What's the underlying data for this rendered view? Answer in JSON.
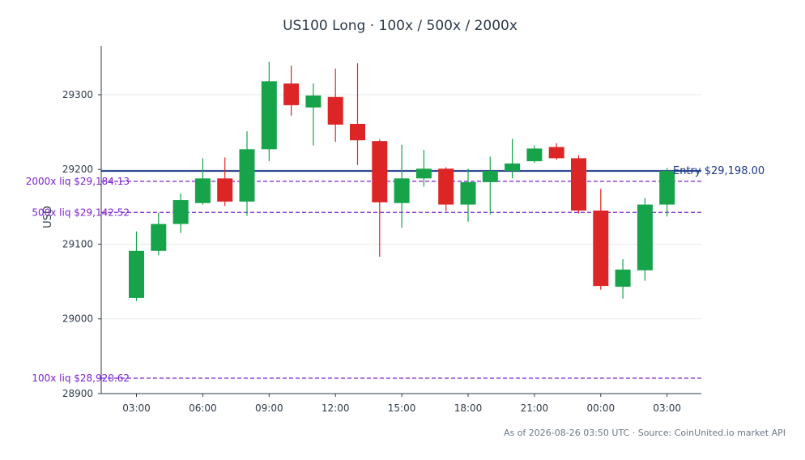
{
  "chart_data": {
    "type": "candlestick",
    "title": "US100 Long · 100x / 500x / 2000x",
    "ylabel": "USD",
    "xlabel": "",
    "ylim": [
      28900,
      29365
    ],
    "yticks": [
      28900,
      29000,
      29100,
      29200,
      29300
    ],
    "ytick_labels": [
      "28900",
      "29000",
      "29100",
      "29200",
      "29300"
    ],
    "xtick_labels": [
      "03:00",
      "06:00",
      "09:00",
      "12:00",
      "15:00",
      "18:00",
      "21:00",
      "00:00",
      "03:00"
    ],
    "xtick_candle_index": [
      0,
      3,
      6,
      9,
      12,
      15,
      18,
      21,
      24
    ],
    "grid": "horizontal",
    "colors": {
      "up": "#16a34a",
      "down": "#dc2626",
      "entry": "#1e3a8a",
      "liq": "#7e22ce",
      "text": "#2d3a4a",
      "footer": "#6b7785"
    },
    "candles": [
      {
        "time": "03:00",
        "open": 29028,
        "high": 29117,
        "low": 29024,
        "close": 29091
      },
      {
        "time": "04:00",
        "open": 29091,
        "high": 29142,
        "low": 29085,
        "close": 29127
      },
      {
        "time": "05:00",
        "open": 29127,
        "high": 29168,
        "low": 29115,
        "close": 29159
      },
      {
        "time": "06:00",
        "open": 29155,
        "high": 29215,
        "low": 29153,
        "close": 29188
      },
      {
        "time": "07:00",
        "open": 29188,
        "high": 29216,
        "low": 29151,
        "close": 29157
      },
      {
        "time": "08:00",
        "open": 29157,
        "high": 29251,
        "low": 29138,
        "close": 29227
      },
      {
        "time": "09:00",
        "open": 29227,
        "high": 29344,
        "low": 29211,
        "close": 29318
      },
      {
        "time": "10:00",
        "open": 29315,
        "high": 29339,
        "low": 29272,
        "close": 29286
      },
      {
        "time": "11:00",
        "open": 29283,
        "high": 29315,
        "low": 29232,
        "close": 29299
      },
      {
        "time": "12:00",
        "open": 29297,
        "high": 29335,
        "low": 29237,
        "close": 29260
      },
      {
        "time": "13:00",
        "open": 29261,
        "high": 29342,
        "low": 29206,
        "close": 29239
      },
      {
        "time": "14:00",
        "open": 29238,
        "high": 29240,
        "low": 29083,
        "close": 29156
      },
      {
        "time": "15:00",
        "open": 29155,
        "high": 29233,
        "low": 29122,
        "close": 29188
      },
      {
        "time": "16:00",
        "open": 29188,
        "high": 29226,
        "low": 29177,
        "close": 29201
      },
      {
        "time": "17:00",
        "open": 29201,
        "high": 29203,
        "low": 29144,
        "close": 29153
      },
      {
        "time": "18:00",
        "open": 29153,
        "high": 29201,
        "low": 29130,
        "close": 29183
      },
      {
        "time": "19:00",
        "open": 29183,
        "high": 29217,
        "low": 29140,
        "close": 29198
      },
      {
        "time": "20:00",
        "open": 29198,
        "high": 29241,
        "low": 29188,
        "close": 29208
      },
      {
        "time": "21:00",
        "open": 29211,
        "high": 29232,
        "low": 29209,
        "close": 29228
      },
      {
        "time": "22:00",
        "open": 29230,
        "high": 29235,
        "low": 29213,
        "close": 29215
      },
      {
        "time": "23:00",
        "open": 29215,
        "high": 29219,
        "low": 29141,
        "close": 29145
      },
      {
        "time": "00:00",
        "open": 29145,
        "high": 29174,
        "low": 29039,
        "close": 29044
      },
      {
        "time": "01:00",
        "open": 29043,
        "high": 29080,
        "low": 29027,
        "close": 29066
      },
      {
        "time": "02:00",
        "open": 29065,
        "high": 29162,
        "low": 29051,
        "close": 29153
      },
      {
        "time": "03:00",
        "open": 29153,
        "high": 29202,
        "low": 29137,
        "close": 29198
      }
    ],
    "lines": [
      {
        "name": "Entry",
        "value": 29198.0,
        "label": "Entry $29,198.00",
        "style": "solid"
      },
      {
        "name": "2000x liq",
        "value": 29184.13,
        "label": "2000x liq $29,184.13",
        "style": "dashed"
      },
      {
        "name": "500x liq",
        "value": 29142.52,
        "label": "500x liq $29,142.52",
        "style": "dashed"
      },
      {
        "name": "100x liq",
        "value": 28920.62,
        "label": "100x liq $28,920.62",
        "style": "dashed"
      }
    ],
    "footer": "As of 2026-08-26 03:50 UTC · Source: CoinUnited.io market API"
  }
}
